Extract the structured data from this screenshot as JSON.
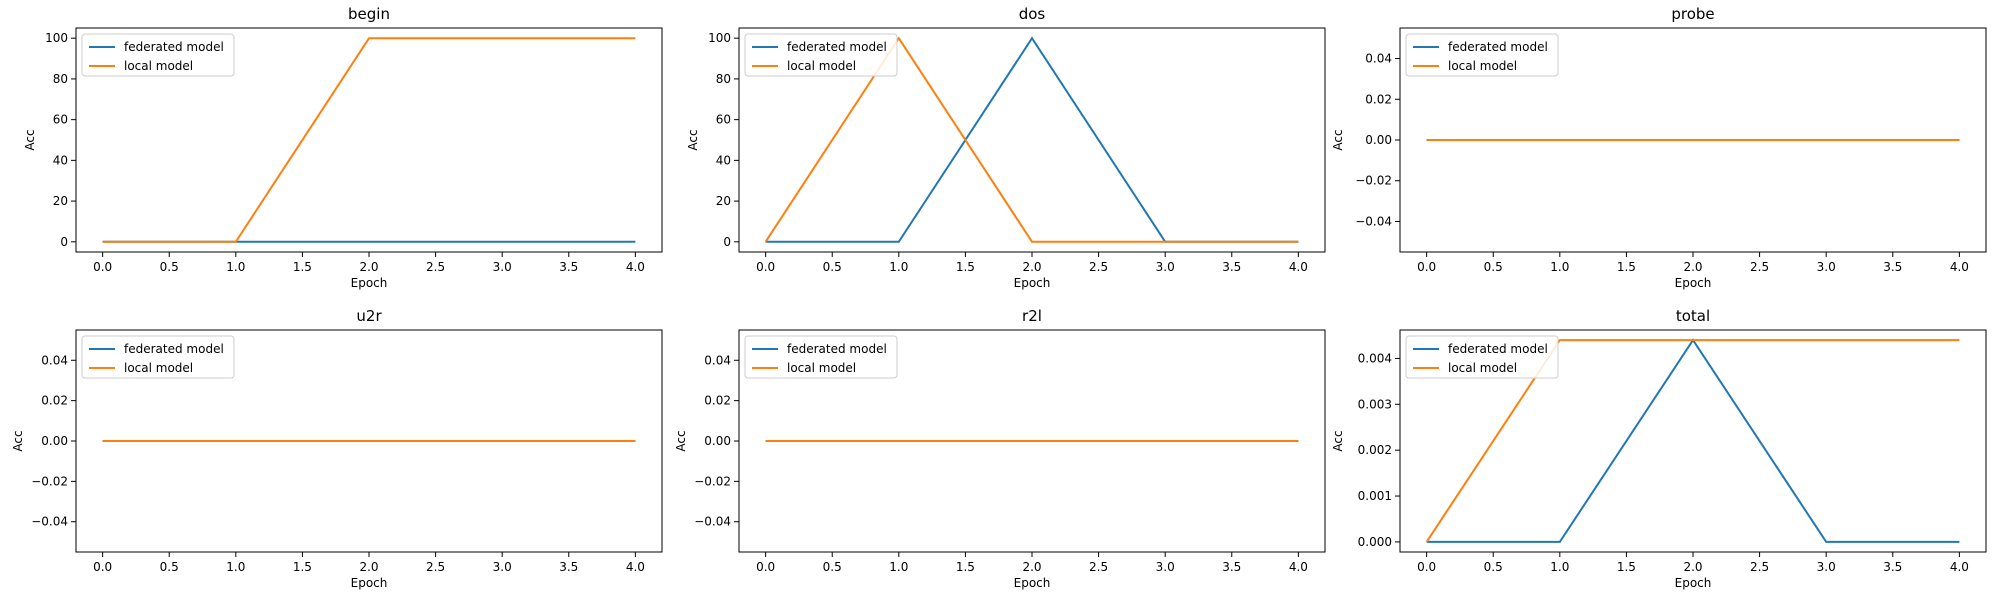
{
  "chart_data": [
    {
      "type": "line",
      "title": "begin",
      "xlabel": "Epoch",
      "ylabel": "Acc",
      "x": [
        0,
        1,
        2,
        3,
        4
      ],
      "series": [
        {
          "name": "federated model",
          "color": "#1f77b4",
          "values": [
            0,
            0,
            0,
            0,
            0
          ]
        },
        {
          "name": "local model",
          "color": "#ff7f0e",
          "values": [
            0,
            0,
            100,
            100,
            100
          ]
        }
      ],
      "xlim": [
        -0.2,
        4.2
      ],
      "ylim": [
        -5,
        105
      ],
      "xticks": [
        "0.0",
        "0.5",
        "1.0",
        "1.5",
        "2.0",
        "2.5",
        "3.0",
        "3.5",
        "4.0"
      ],
      "yticks": [
        "0",
        "20",
        "40",
        "60",
        "80",
        "100"
      ],
      "legend": "upper-left",
      "grid": false
    },
    {
      "type": "line",
      "title": "dos",
      "xlabel": "Epoch",
      "ylabel": "Acc",
      "x": [
        0,
        1,
        2,
        3,
        4
      ],
      "series": [
        {
          "name": "federated model",
          "color": "#1f77b4",
          "values": [
            0,
            0,
            100,
            0,
            0
          ]
        },
        {
          "name": "local model",
          "color": "#ff7f0e",
          "values": [
            0,
            100,
            0,
            0,
            0
          ]
        }
      ],
      "xlim": [
        -0.2,
        4.2
      ],
      "ylim": [
        -5,
        105
      ],
      "xticks": [
        "0.0",
        "0.5",
        "1.0",
        "1.5",
        "2.0",
        "2.5",
        "3.0",
        "3.5",
        "4.0"
      ],
      "yticks": [
        "0",
        "20",
        "40",
        "60",
        "80",
        "100"
      ],
      "legend": "upper-left",
      "grid": false
    },
    {
      "type": "line",
      "title": "probe",
      "xlabel": "Epoch",
      "ylabel": "Acc",
      "x": [
        0,
        1,
        2,
        3,
        4
      ],
      "series": [
        {
          "name": "federated model",
          "color": "#1f77b4",
          "values": [
            0,
            0,
            0,
            0,
            0
          ]
        },
        {
          "name": "local model",
          "color": "#ff7f0e",
          "values": [
            0,
            0,
            0,
            0,
            0
          ]
        }
      ],
      "xlim": [
        -0.2,
        4.2
      ],
      "ylim": [
        -0.055,
        0.055
      ],
      "xticks": [
        "0.0",
        "0.5",
        "1.0",
        "1.5",
        "2.0",
        "2.5",
        "3.0",
        "3.5",
        "4.0"
      ],
      "yticks": [
        "0.04",
        "0.02",
        "0.00",
        "−0.02",
        "−0.04"
      ],
      "legend": "upper-left",
      "grid": false
    },
    {
      "type": "line",
      "title": "u2r",
      "xlabel": "Epoch",
      "ylabel": "Acc",
      "x": [
        0,
        1,
        2,
        3,
        4
      ],
      "series": [
        {
          "name": "federated model",
          "color": "#1f77b4",
          "values": [
            0,
            0,
            0,
            0,
            0
          ]
        },
        {
          "name": "local model",
          "color": "#ff7f0e",
          "values": [
            0,
            0,
            0,
            0,
            0
          ]
        }
      ],
      "xlim": [
        -0.2,
        4.2
      ],
      "ylim": [
        -0.055,
        0.055
      ],
      "xticks": [
        "0.0",
        "0.5",
        "1.0",
        "1.5",
        "2.0",
        "2.5",
        "3.0",
        "3.5",
        "4.0"
      ],
      "yticks": [
        "0.04",
        "0.02",
        "0.00",
        "−0.02",
        "−0.04"
      ],
      "legend": "upper-left",
      "grid": false
    },
    {
      "type": "line",
      "title": "r2l",
      "xlabel": "Epoch",
      "ylabel": "Acc",
      "x": [
        0,
        1,
        2,
        3,
        4
      ],
      "series": [
        {
          "name": "federated model",
          "color": "#1f77b4",
          "values": [
            0,
            0,
            0,
            0,
            0
          ]
        },
        {
          "name": "local model",
          "color": "#ff7f0e",
          "values": [
            0,
            0,
            0,
            0,
            0
          ]
        }
      ],
      "xlim": [
        -0.2,
        4.2
      ],
      "ylim": [
        -0.055,
        0.055
      ],
      "xticks": [
        "0.0",
        "0.5",
        "1.0",
        "1.5",
        "2.0",
        "2.5",
        "3.0",
        "3.5",
        "4.0"
      ],
      "yticks": [
        "0.04",
        "0.02",
        "0.00",
        "−0.02",
        "−0.04"
      ],
      "legend": "upper-left",
      "grid": false
    },
    {
      "type": "line",
      "title": "total",
      "xlabel": "Epoch",
      "ylabel": "Acc",
      "x": [
        0,
        1,
        2,
        3,
        4
      ],
      "series": [
        {
          "name": "federated model",
          "color": "#1f77b4",
          "values": [
            0,
            0,
            0.0044,
            0,
            0
          ]
        },
        {
          "name": "local model",
          "color": "#ff7f0e",
          "values": [
            0,
            0.0044,
            0.0044,
            0.0044,
            0.0044
          ]
        }
      ],
      "xlim": [
        -0.2,
        4.2
      ],
      "ylim": [
        -0.00022,
        0.00462
      ],
      "xticks": [
        "0.0",
        "0.5",
        "1.0",
        "1.5",
        "2.0",
        "2.5",
        "3.0",
        "3.5",
        "4.0"
      ],
      "yticks": [
        "0.000",
        "0.001",
        "0.002",
        "0.003",
        "0.004"
      ],
      "legend": "upper-left",
      "grid": false
    }
  ]
}
